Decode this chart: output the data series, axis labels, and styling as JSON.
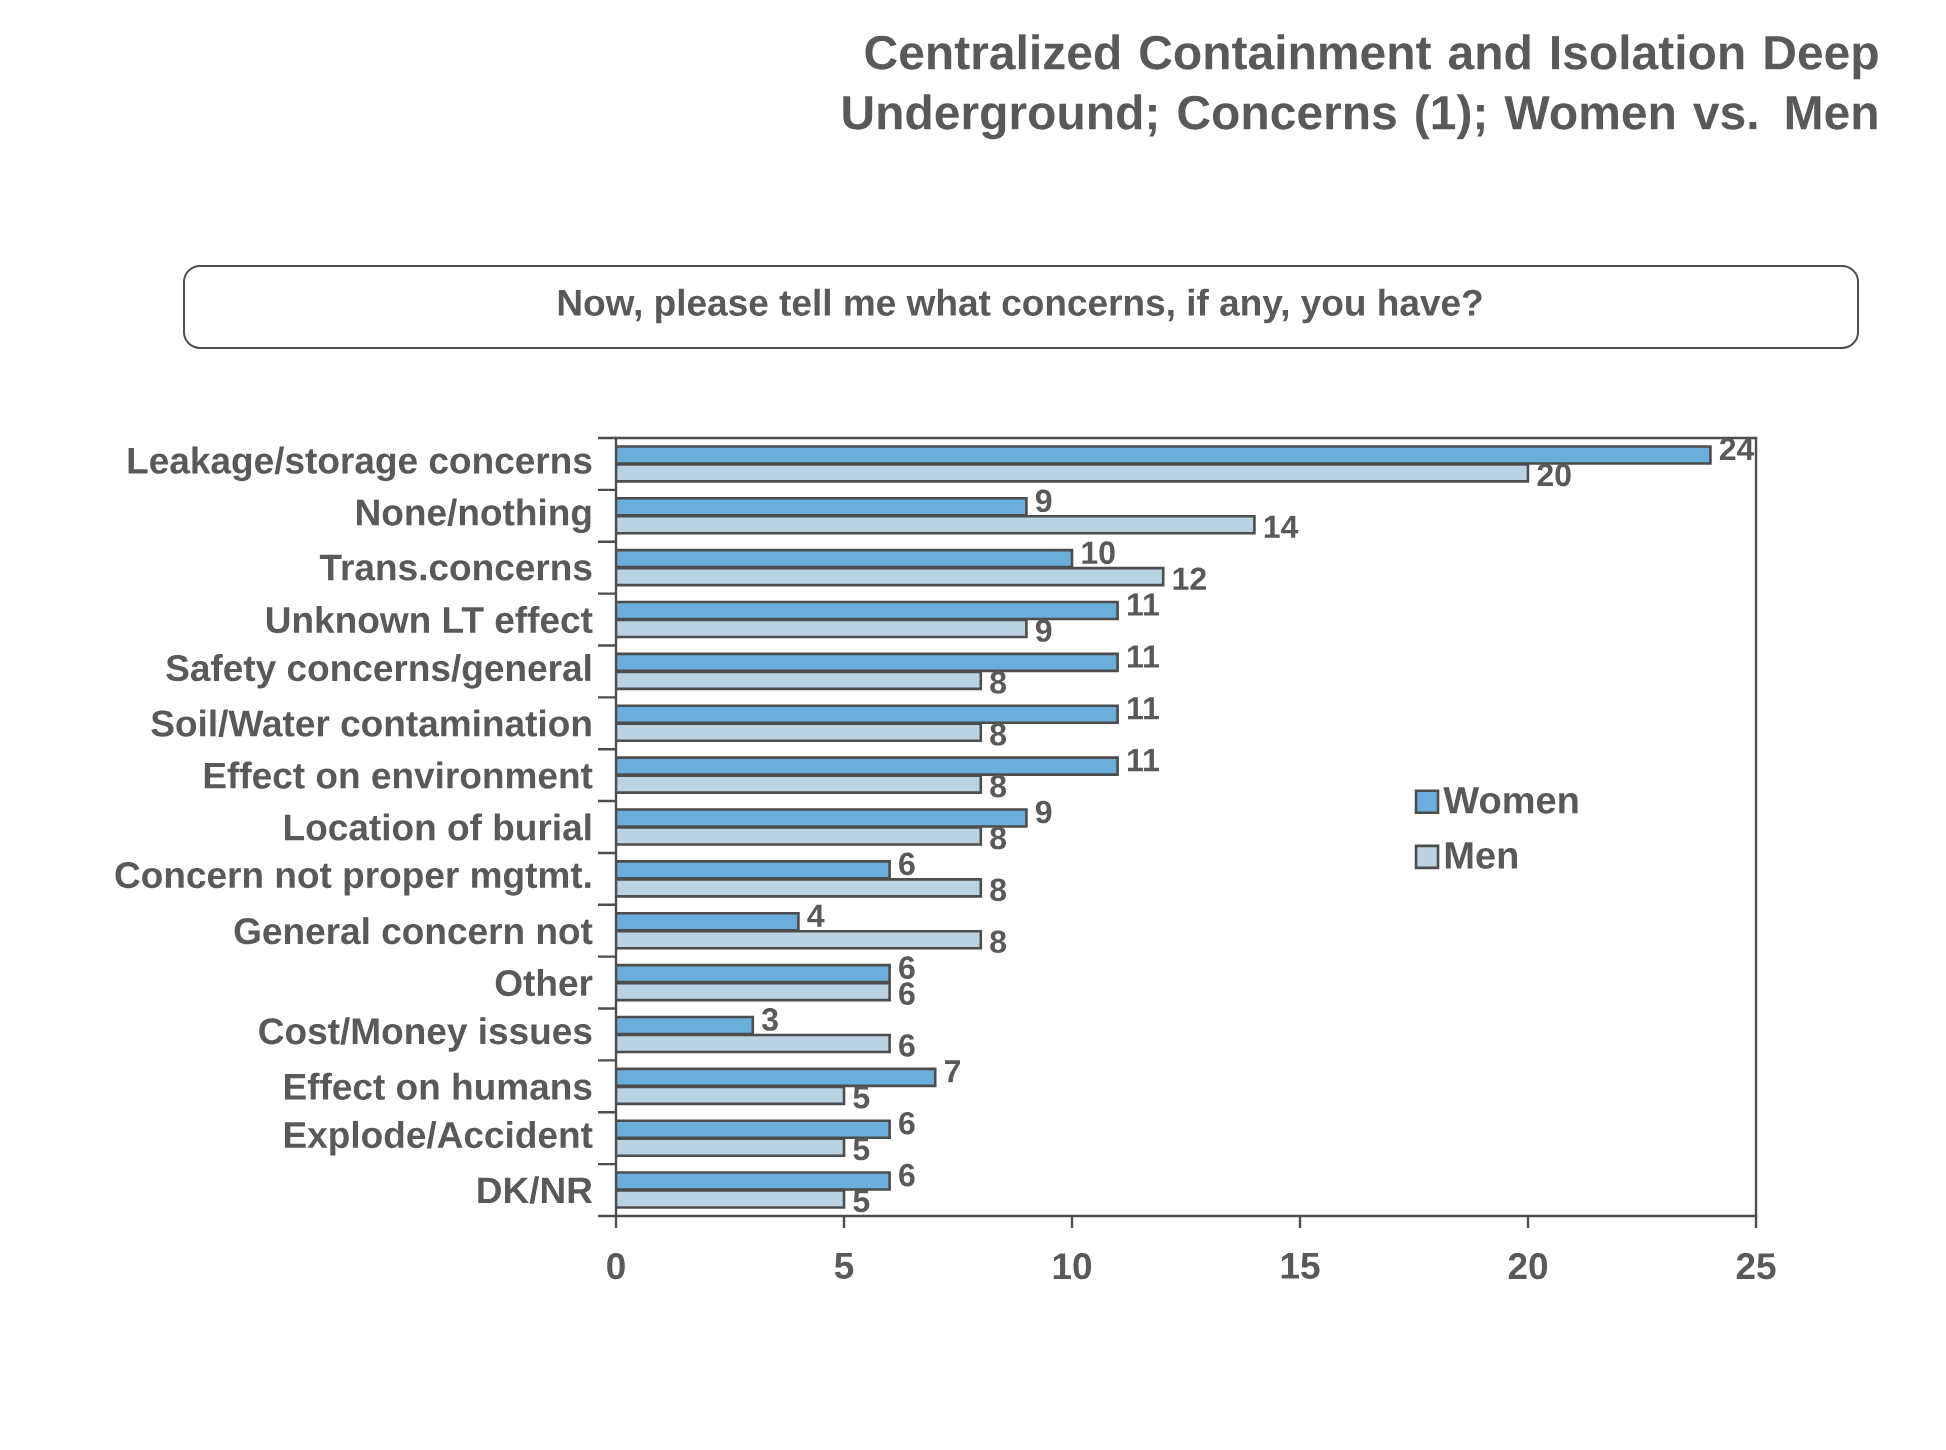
{
  "chart_data": {
    "type": "bar",
    "orientation": "horizontal",
    "title": "Centralized Containment and Isolation Deep Underground; Concerns (1); Women vs. Men",
    "subtitle": "Now, please tell me what concerns, if any, you have?",
    "categories": [
      "Leakage/storage concerns",
      "None/nothing",
      "Trans.concerns",
      "Unknown LT effect",
      "Safety concerns/general",
      "Soil/Water contamination",
      "Effect on environment",
      "Location of burial",
      "Concern not proper mgtmt.",
      "General concern not",
      "Other",
      "Cost/Money issues",
      "Effect on humans",
      "Explode/Accident",
      "DK/NR"
    ],
    "series": [
      {
        "name": "Women",
        "color": "#6aaedc",
        "values": [
          24,
          9,
          10,
          11,
          11,
          11,
          11,
          9,
          6,
          4,
          6,
          3,
          7,
          6,
          6
        ]
      },
      {
        "name": "Men",
        "color": "#b9d3e3",
        "values": [
          20,
          14,
          12,
          9,
          8,
          8,
          8,
          8,
          8,
          8,
          6,
          6,
          5,
          5,
          5
        ]
      }
    ],
    "xlim": [
      0,
      25
    ],
    "xticks": [
      0,
      5,
      10,
      15,
      20,
      25
    ],
    "data_labels": true,
    "legend": "right"
  }
}
